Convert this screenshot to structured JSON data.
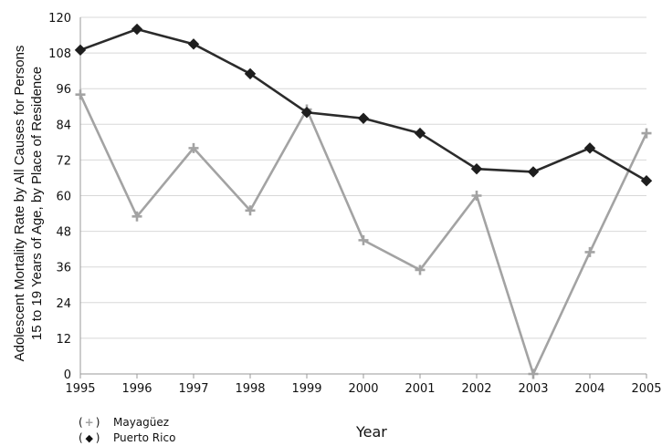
{
  "chart_data": {
    "type": "line",
    "xlabel": "Year",
    "ylabel_line1": "Adolescent Mortality Rate by All Causes for Persons",
    "ylabel_line2": "15 to 19 Years of Age, by Place of Residence",
    "categories": [
      "1995",
      "1996",
      "1997",
      "1998",
      "1999",
      "2000",
      "2001",
      "2002",
      "2003",
      "2004",
      "2005"
    ],
    "ylim": [
      0,
      120
    ],
    "yticks": [
      0,
      12,
      24,
      36,
      48,
      60,
      72,
      84,
      96,
      108,
      120
    ],
    "grid": true,
    "legend_position": "bottom-left",
    "series": [
      {
        "name": "Mayagüez",
        "marker": "plus",
        "color": "#a3a3a3",
        "values": [
          94,
          53,
          76,
          55,
          89,
          45,
          35,
          60,
          0,
          41,
          81
        ]
      },
      {
        "name": "Puerto Rico",
        "marker": "diamond",
        "color": "#2b2b2b",
        "values": [
          109,
          116,
          111,
          101,
          88,
          86,
          81,
          69,
          68,
          76,
          65
        ]
      }
    ]
  },
  "legend": {
    "items": [
      {
        "symbol_open": "(",
        "symbol": "+",
        "symbol_close": ")",
        "label": "Mayagüez"
      },
      {
        "symbol_open": "(",
        "symbol": "◆",
        "symbol_close": ")",
        "label": "Puerto Rico"
      }
    ]
  }
}
